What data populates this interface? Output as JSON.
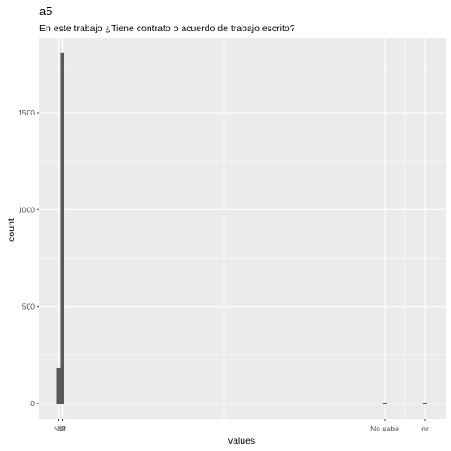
{
  "chart_data": {
    "type": "bar",
    "title": "a5",
    "subtitle": "En este trabajo ¿Tiene contrato o acuerdo de trabajo escrito?",
    "xlabel": "values",
    "ylabel": "count",
    "x_ticks": [
      "No",
      "Sí",
      "?",
      "No sabe",
      "nr"
    ],
    "ylim": [
      0,
      1875
    ],
    "y_ticks": [
      0,
      500,
      1000,
      1500
    ],
    "grid": true,
    "bars": [
      {
        "category": "No",
        "value": 185
      },
      {
        "category": "Sí",
        "value": 1810
      },
      {
        "category": "No sabe",
        "value": 4
      },
      {
        "category": "nr",
        "value": 3
      }
    ],
    "colors": {
      "bar": "#595959",
      "panel": "#ebebeb",
      "grid": "#ffffff"
    }
  }
}
